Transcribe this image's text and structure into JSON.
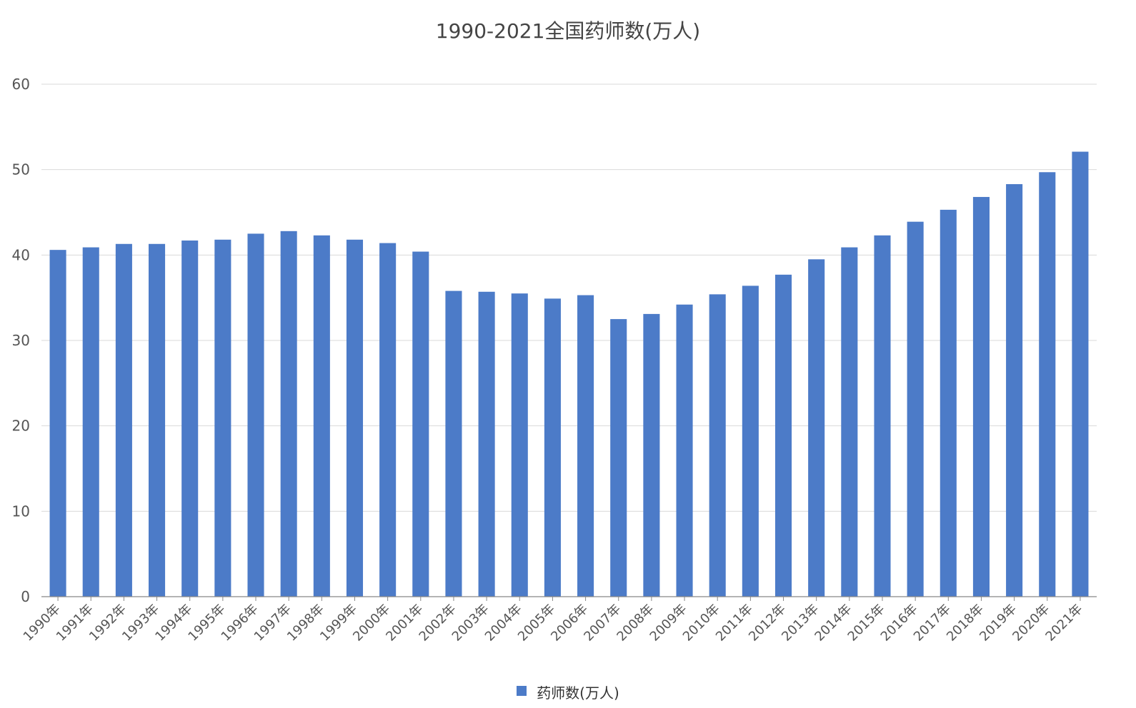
{
  "chart_data": {
    "type": "bar",
    "title": "1990-2021全国药师数(万人)",
    "categories": [
      "1990年",
      "1991年",
      "1992年",
      "1993年",
      "1994年",
      "1995年",
      "1996年",
      "1997年",
      "1998年",
      "1999年",
      "2000年",
      "2001年",
      "2002年",
      "2003年",
      "2004年",
      "2005年",
      "2006年",
      "2007年",
      "2008年",
      "2009年",
      "2010年",
      "2011年",
      "2012年",
      "2013年",
      "2014年",
      "2015年",
      "2016年",
      "2017年",
      "2018年",
      "2019年",
      "2020年",
      "2021年"
    ],
    "series": [
      {
        "name": "药师数(万人)",
        "color": "#4c7bc8",
        "values": [
          40.6,
          40.9,
          41.3,
          41.3,
          41.7,
          41.8,
          42.5,
          42.8,
          42.3,
          41.8,
          41.4,
          40.4,
          35.8,
          35.7,
          35.5,
          34.9,
          35.3,
          32.5,
          33.1,
          34.2,
          35.4,
          36.4,
          37.7,
          39.5,
          40.9,
          42.3,
          43.9,
          45.3,
          46.8,
          48.3,
          49.7,
          52.1
        ]
      }
    ],
    "ylim": [
      0,
      60
    ],
    "yticks": [
      0,
      10,
      20,
      30,
      40,
      50,
      60
    ],
    "grid": true,
    "legend_position": "bottom-center",
    "xlabel": "",
    "ylabel": ""
  }
}
